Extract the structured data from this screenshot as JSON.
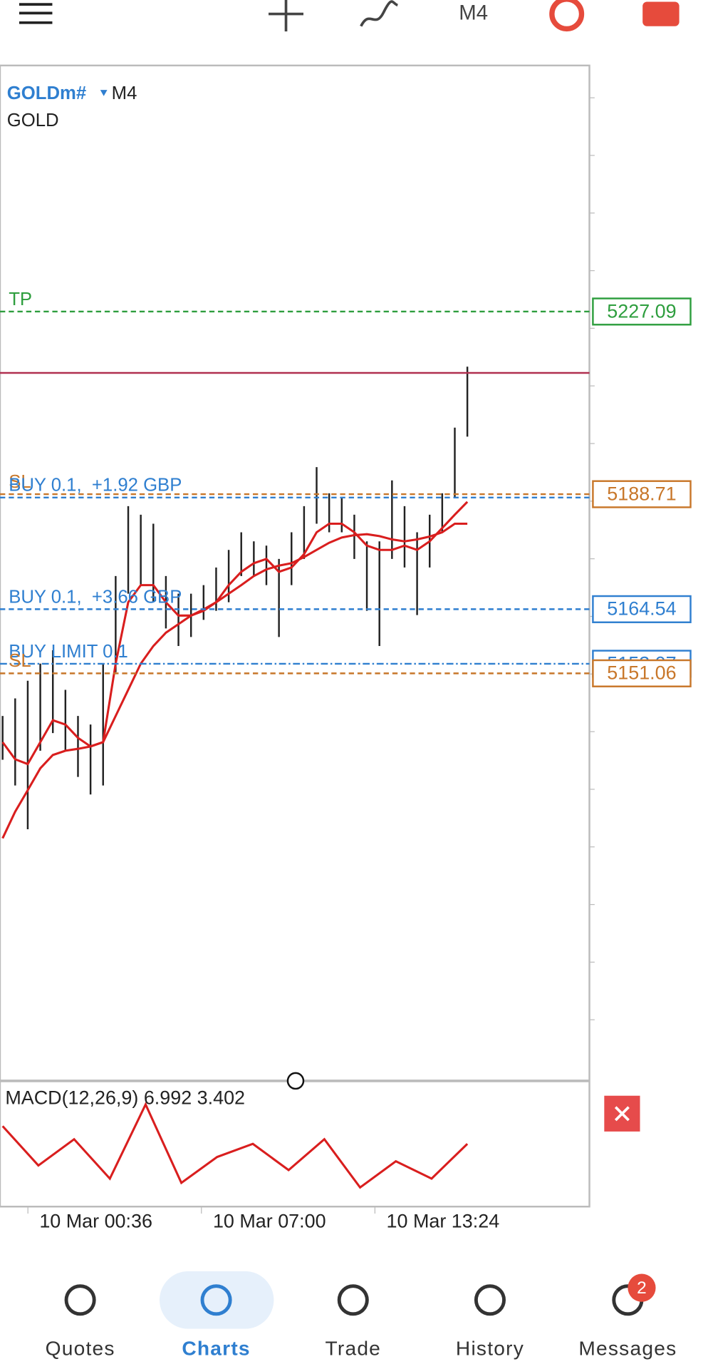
{
  "toolbar": {
    "timeframe": "M4"
  },
  "chart": {
    "symbol": "GOLDm#",
    "timeframe": "M4",
    "description": "GOLD",
    "ylim": [
      5065.6,
      5278.8
    ],
    "current_price": 5214.2,
    "levels": [
      {
        "label": "TP",
        "price": 5227.09,
        "color": "#2e9e3e",
        "dash": "6 4",
        "box": true
      },
      {
        "label": "SL",
        "price": 5188.71,
        "color": "#c8772a",
        "dash": "6 4",
        "box": true
      },
      {
        "label": "BUY 0.1,  +1.92 GBP",
        "price": 5188.0,
        "color": "#2f7fd0",
        "dash": "6 4",
        "box": false
      },
      {
        "label": "BUY 0.1,  +3.66 GBP",
        "price": 5164.54,
        "color": "#2f7fd0",
        "dash": "6 4",
        "box": true
      },
      {
        "label": "BUY LIMIT 0.1",
        "price": 5153.07,
        "color": "#2f7fd0",
        "dash": "8 3 2 3",
        "box": true
      },
      {
        "label": "SL",
        "price": 5151.06,
        "color": "#c8772a",
        "dash": "6 4",
        "box": true
      }
    ],
    "highs": [
      5142.1,
      5145.8,
      5149.5,
      5153.1,
      5155.9,
      5147.6,
      5142.1,
      5140.3,
      5153.1,
      5171.5,
      5186.2,
      5184.4,
      5182.5,
      5171.5,
      5167.8,
      5167.8,
      5169.6,
      5173.3,
      5177.0,
      5180.7,
      5178.8,
      5177.9,
      5175.1,
      5180.7,
      5186.2,
      5194.4,
      5188.9,
      5188.0,
      5184.4,
      5178.8,
      5178.8,
      5191.6,
      5186.2,
      5180.7,
      5184.4,
      5188.9,
      5202.7,
      5215.5
    ],
    "lows": [
      5132.9,
      5127.5,
      5118.3,
      5134.8,
      5138.5,
      5134.8,
      5129.3,
      5125.6,
      5127.5,
      5151.3,
      5167.8,
      5169.6,
      5166.0,
      5160.5,
      5156.8,
      5158.7,
      5162.3,
      5164.2,
      5166.0,
      5171.5,
      5171.5,
      5169.6,
      5158.7,
      5169.6,
      5175.1,
      5182.5,
      5180.7,
      5180.7,
      5175.1,
      5164.2,
      5156.8,
      5175.1,
      5173.3,
      5163.3,
      5173.3,
      5180.7,
      5188.0,
      5200.8
    ],
    "ma_fast": [
      5136.6,
      5133.0,
      5132.0,
      5136.6,
      5141.2,
      5140.3,
      5137.5,
      5135.7,
      5136.6,
      5153.1,
      5166.0,
      5169.6,
      5169.6,
      5166.0,
      5163.2,
      5163.2,
      5164.2,
      5166.0,
      5169.6,
      5172.4,
      5174.2,
      5175.1,
      5172.4,
      5173.3,
      5176.1,
      5180.7,
      5182.5,
      5182.5,
      5180.7,
      5177.9,
      5177.0,
      5177.0,
      5177.9,
      5177.0,
      5178.8,
      5181.6,
      5184.4,
      5187.1
    ],
    "ma_slow": [
      5116.4,
      5122.0,
      5126.5,
      5131.1,
      5133.9,
      5134.8,
      5135.2,
      5135.7,
      5136.6,
      5142.1,
      5147.6,
      5153.1,
      5156.8,
      5159.6,
      5161.4,
      5163.2,
      5164.5,
      5166.0,
      5167.8,
      5169.6,
      5171.5,
      5172.9,
      5173.7,
      5174.2,
      5175.5,
      5177.0,
      5178.5,
      5179.6,
      5180.1,
      5180.3,
      5179.9,
      5179.2,
      5178.8,
      5179.2,
      5179.8,
      5180.7,
      5182.5,
      5182.5
    ],
    "time_labels": [
      "10 Mar 00:36",
      "10 Mar 07:00",
      "10 Mar 13:24"
    ]
  },
  "macd": {
    "title": "MACD(12,26,9) 6.992 3.402",
    "ylim": [
      -12,
      20
    ],
    "signal": [
      10.2,
      -0.9,
      6.5,
      -4.6,
      16.3,
      -5.8,
      1.5,
      5.2,
      -2.2,
      6.5,
      -7.1,
      0.3,
      -4.6,
      5.2
    ]
  },
  "nav": {
    "items": [
      "Quotes",
      "Charts",
      "Trade",
      "History",
      "Messages"
    ],
    "active": 1,
    "badge": "2"
  }
}
